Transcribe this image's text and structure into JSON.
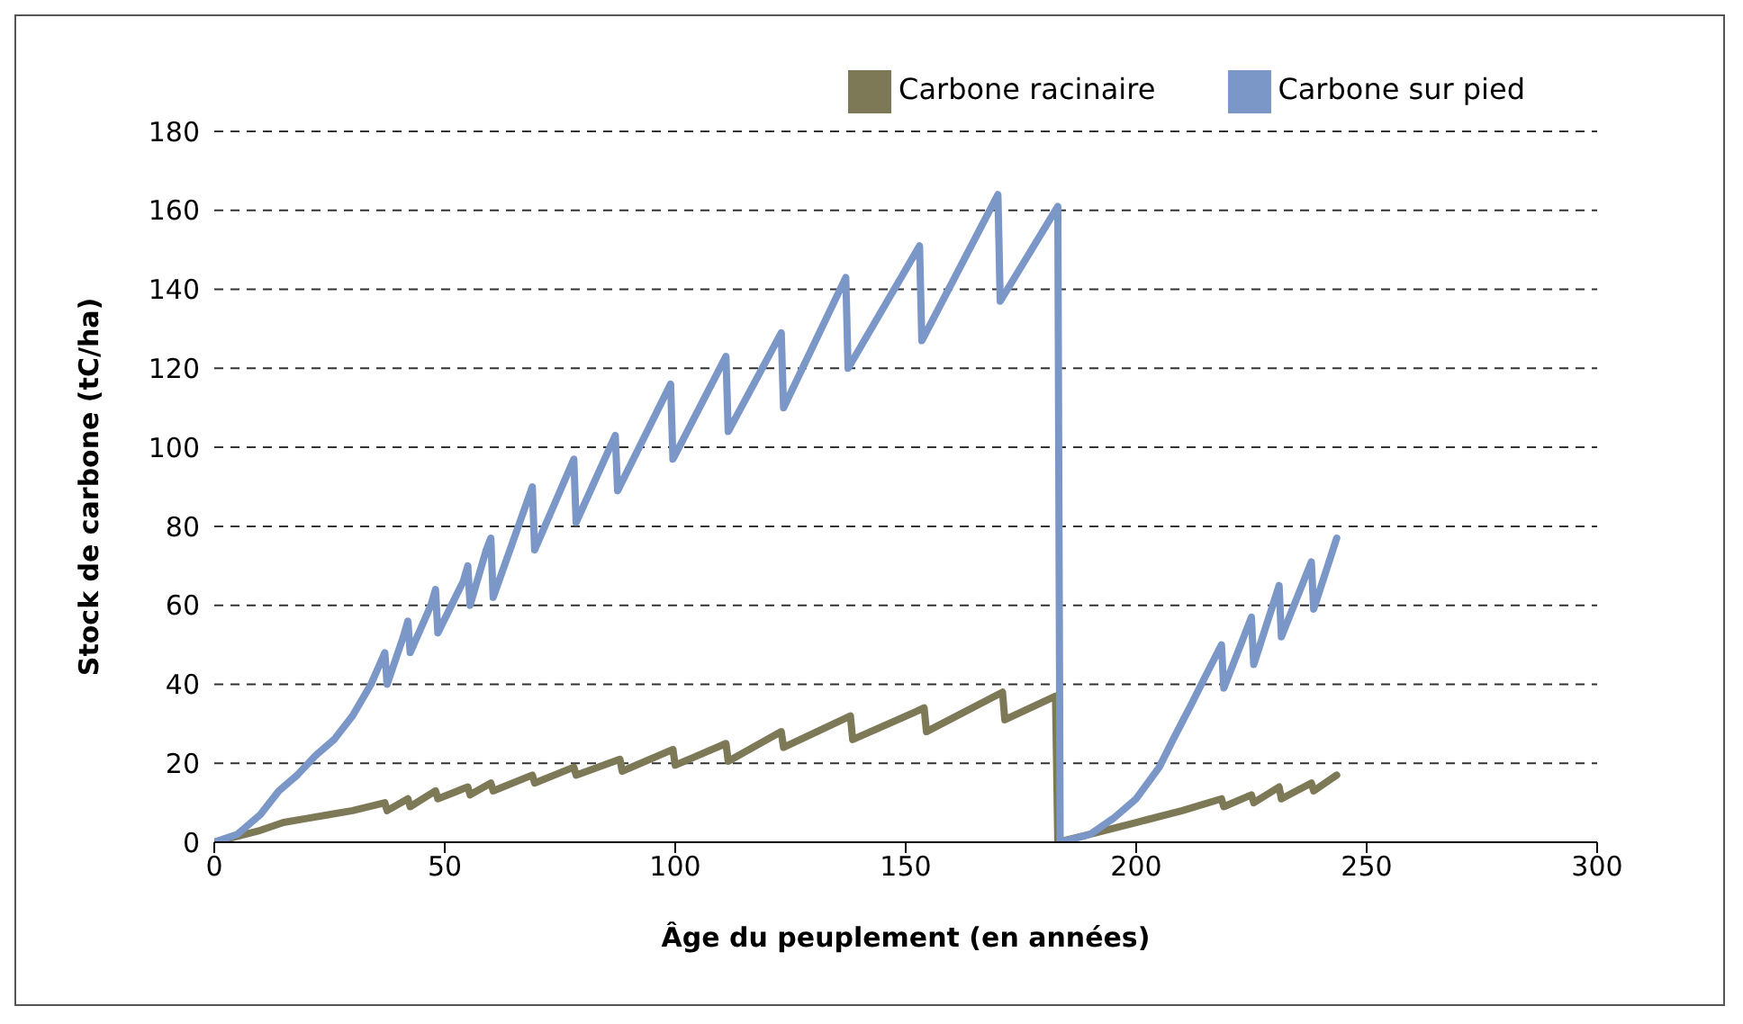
{
  "chart_data": {
    "type": "line",
    "xlabel": "Âge du peuplement (en années)",
    "ylabel": "Stock de carbone (tC/ha)",
    "xlim": [
      0,
      300
    ],
    "xticks": [
      0,
      50,
      100,
      150,
      200,
      250,
      300
    ],
    "ylim": [
      0,
      180
    ],
    "yticks": [
      0,
      20,
      40,
      60,
      80,
      100,
      120,
      140,
      160,
      180
    ],
    "grid": "y",
    "legend": "top right",
    "marker": "none",
    "line_style": "solid",
    "series": [
      {
        "name": "Carbone racinaire",
        "color": "#7d7856",
        "x": [
          0,
          10,
          15,
          20,
          25,
          30,
          37,
          37.5,
          42,
          42.5,
          48,
          48.5,
          55,
          55.5,
          60,
          60.5,
          69,
          69.5,
          78,
          78.5,
          88,
          88.5,
          99.5,
          100,
          111,
          111.5,
          123,
          123.5,
          138,
          138.5,
          154,
          154.5,
          171,
          171.5,
          182.5,
          183,
          190,
          200,
          210,
          218.5,
          219,
          225,
          225.5,
          231,
          231.5,
          238,
          238.5,
          243.5
        ],
        "values": [
          0,
          3,
          5,
          6,
          7,
          8,
          10,
          8,
          11,
          9,
          13,
          11,
          14,
          12,
          15,
          13,
          17,
          15,
          19,
          17,
          21,
          18,
          23.5,
          19.5,
          25,
          20.5,
          28,
          24,
          32,
          26,
          34,
          28,
          38,
          31,
          37,
          0,
          2,
          5,
          8,
          11,
          9,
          12,
          10,
          14,
          11,
          15,
          13,
          17
        ]
      },
      {
        "name": "Carbone sur pied",
        "color": "#7b97c7",
        "x": [
          0,
          5,
          10,
          14,
          18,
          22,
          26,
          30,
          34,
          37,
          37.5,
          41,
          42,
          42.5,
          47,
          48,
          48.5,
          54,
          55,
          55.5,
          59,
          60,
          60.5,
          69,
          69.5,
          78,
          78.5,
          87,
          87.5,
          99,
          99.5,
          111,
          111.5,
          123,
          123.5,
          137,
          137.5,
          153,
          153.5,
          170,
          170.5,
          183,
          183.5,
          190,
          195,
          200,
          205,
          208,
          212,
          215,
          218.5,
          219,
          225,
          225.5,
          231,
          231.5,
          238,
          238.5,
          243.5
        ],
        "values": [
          0,
          2,
          7,
          13,
          17,
          22,
          26,
          32,
          40,
          48,
          40,
          52,
          56,
          48,
          60,
          64,
          53,
          66,
          70,
          60,
          74,
          77,
          62,
          90,
          74,
          97,
          81,
          103,
          89,
          116,
          97,
          123,
          104,
          129,
          110,
          143,
          120,
          151,
          127,
          164,
          137,
          161,
          0,
          2,
          6,
          11,
          19,
          26,
          35,
          42,
          50,
          39,
          57,
          45,
          65,
          52,
          71,
          59,
          77
        ]
      }
    ]
  }
}
